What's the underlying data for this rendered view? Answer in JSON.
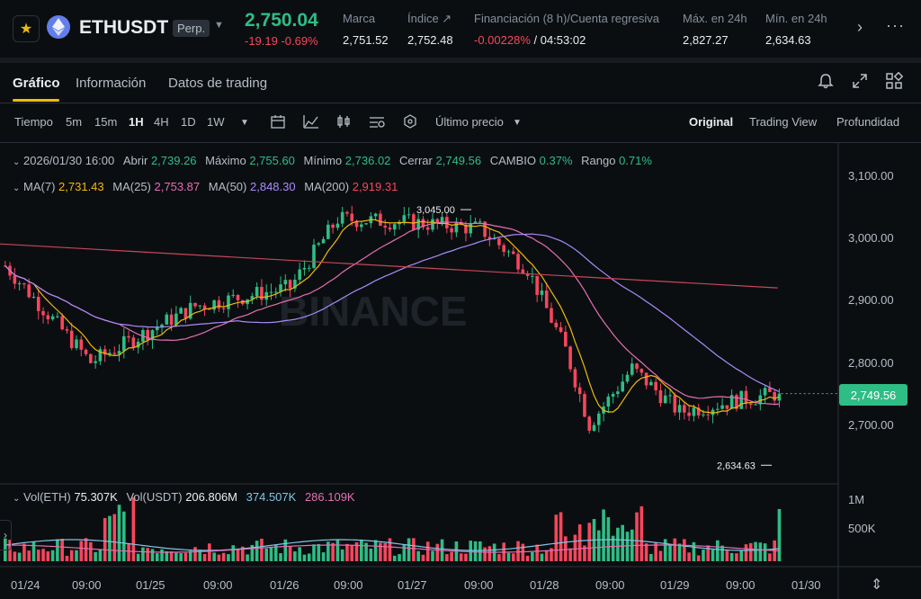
{
  "header": {
    "symbol": "ETHUSDT",
    "contract_badge": "Perp.",
    "last_price": "2,750.04",
    "change": "-19.19 -0.69%",
    "stats": [
      {
        "label": "Marca",
        "value": "2,751.52"
      },
      {
        "label": "Índice ↗",
        "value": "2,752.48"
      },
      {
        "label": "Financiación (8 h)/Cuenta regresiva",
        "value_funding": "-0.00228%",
        "value_countdown": " / 04:53:02"
      },
      {
        "label": "Máx. en 24h",
        "value": "2,827.27"
      },
      {
        "label": "Mín. en 24h",
        "value": "2,634.63"
      }
    ],
    "icons": [
      "star-icon",
      "eth-logo-icon",
      "chevron-down-icon",
      "chevron-right-icon",
      "more-dots-icon"
    ]
  },
  "tabs": [
    {
      "label": "Gráfico",
      "active": true
    },
    {
      "label": "Información",
      "active": false
    },
    {
      "label": "Datos de trading",
      "active": false
    }
  ],
  "toolbar": {
    "timeframes": [
      "Tiempo",
      "5m",
      "15m",
      "1H",
      "4H",
      "1D",
      "1W"
    ],
    "active_timeframe": "1H",
    "price_type": "Último precio",
    "views": [
      "Original",
      "Trading View",
      "Profundidad"
    ],
    "active_view": "Original"
  },
  "ohlc": {
    "date": "2026/01/30 16:00",
    "open_label": "Abrir",
    "open": "2,739.26",
    "high_label": "Máximo",
    "high": "2,755.60",
    "low_label": "Mínimo",
    "low": "2,736.02",
    "close_label": "Cerrar",
    "close": "2,749.56",
    "change_label": "CAMBIO",
    "change": "0.37%",
    "range_label": "Rango",
    "range": "0.71%"
  },
  "ma": {
    "ma7_label": "MA(7)",
    "ma7": "2,731.43",
    "ma25_label": "MA(25)",
    "ma25": "2,753.87",
    "ma50_label": "MA(50)",
    "ma50": "2,848.30",
    "ma200_label": "MA(200)",
    "ma200": "2,919.31"
  },
  "volume": {
    "label_eth": "Vol(ETH)",
    "vol_eth": "75.307K",
    "label_usdt": "Vol(USDT)",
    "vol_usdt": "206.806M",
    "ma1": "374.507K",
    "ma2": "286.109K",
    "axis": [
      "1M",
      "500K"
    ]
  },
  "price_axis": [
    "3,100.00",
    "3,000.00",
    "2,900.00",
    "2,800.00",
    "2,700.00"
  ],
  "current_price_tag": "2,749.56",
  "annotations": {
    "high_marker": "3,045.00",
    "low_marker": "2,634.63"
  },
  "watermark": "BINANCE",
  "time_axis": [
    "01/24",
    "09:00",
    "01/25",
    "09:00",
    "01/26",
    "09:00",
    "01/27",
    "09:00",
    "01/28",
    "09:00",
    "01/29",
    "09:00",
    "01/30"
  ],
  "colors": {
    "up": "#2ebd85",
    "down": "#f6465d",
    "ma7": "#f0b90b",
    "ma25": "#e46fb3",
    "ma50": "#a98bfa",
    "ma200": "#c7475a",
    "accent": "#f0b90b"
  },
  "chart_data": {
    "type": "candlestick",
    "y_range": [
      2600,
      3150
    ],
    "key_prices": [
      {
        "x_index": 0,
        "price": 2955
      },
      {
        "x_index": 18,
        "price": 2800
      },
      {
        "x_index": 40,
        "price": 2890
      },
      {
        "x_index": 60,
        "price": 2920
      },
      {
        "x_index": 70,
        "price": 3030
      },
      {
        "x_index": 85,
        "price": 3025
      },
      {
        "x_index": 100,
        "price": 3015
      },
      {
        "x_index": 110,
        "price": 2950
      },
      {
        "x_index": 118,
        "price": 2820
      },
      {
        "x_index": 123,
        "price": 2700
      },
      {
        "x_index": 132,
        "price": 2790
      },
      {
        "x_index": 142,
        "price": 2720
      },
      {
        "x_index": 155,
        "price": 2740
      },
      {
        "x_index": 163,
        "price": 2750
      }
    ],
    "ma200": [
      [
        0,
        2990
      ],
      [
        163,
        2919.31
      ]
    ],
    "last_close": 2749.56
  }
}
